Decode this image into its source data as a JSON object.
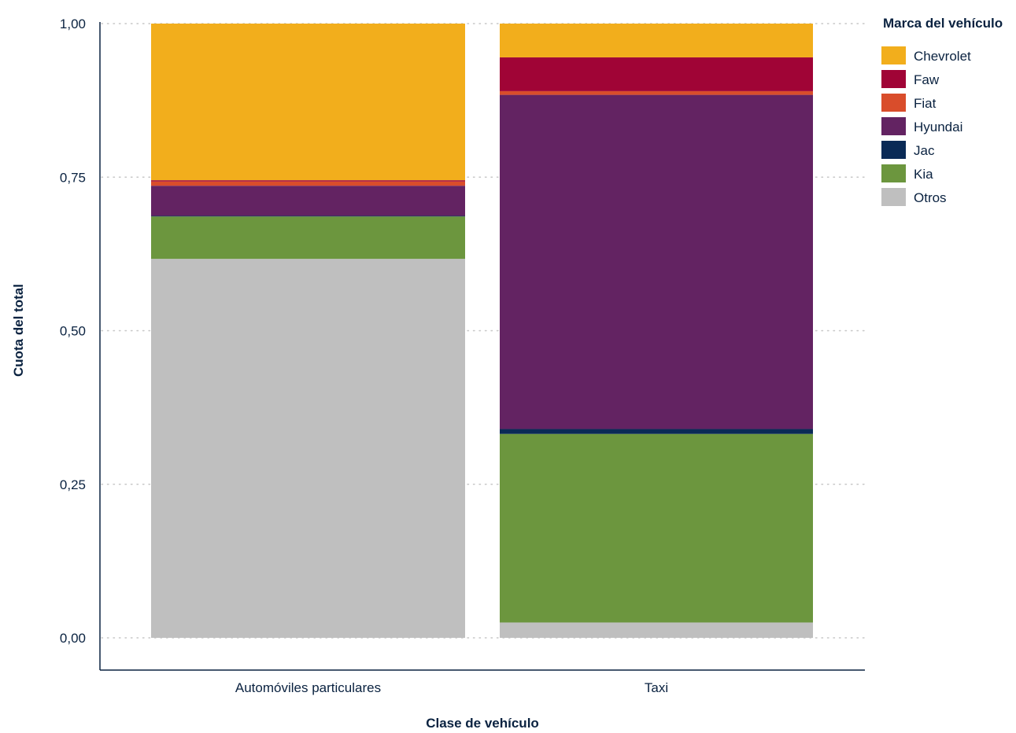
{
  "chart_data": {
    "type": "bar",
    "stacked": true,
    "categories": [
      "Automóviles particulares",
      "Taxi"
    ],
    "series": [
      {
        "name": "Otros",
        "color": "#bfbfbf",
        "values": [
          0.617,
          0.025
        ]
      },
      {
        "name": "Kia",
        "color": "#6c963e",
        "values": [
          0.069,
          0.307
        ]
      },
      {
        "name": "Jac",
        "color": "#0a2a56",
        "values": [
          0.001,
          0.008
        ]
      },
      {
        "name": "Hyundai",
        "color": "#632362",
        "values": [
          0.049,
          0.544
        ]
      },
      {
        "name": "Fiat",
        "color": "#d94d2b",
        "values": [
          0.007,
          0.006
        ]
      },
      {
        "name": "Faw",
        "color": "#a00436",
        "values": [
          0.002,
          0.055
        ]
      },
      {
        "name": "Chevrolet",
        "color": "#f2ae1c",
        "values": [
          0.255,
          0.055
        ]
      }
    ],
    "legend_order": [
      "Chevrolet",
      "Faw",
      "Fiat",
      "Hyundai",
      "Jac",
      "Kia",
      "Otros"
    ],
    "legend_title": "Marca del vehículo",
    "legend_placement": "top-right",
    "xlabel": "Clase de vehículo",
    "ylabel": "Cuota del total",
    "ylim": [
      0,
      1
    ],
    "yticks": [
      0,
      0.25,
      0.5,
      0.75,
      1
    ],
    "ytick_labels": [
      "0,00",
      "0,25",
      "0,50",
      "0,75",
      "1,00"
    ],
    "grid": true,
    "axis_color": "#0a2240",
    "grid_color": "#c7c7c7"
  }
}
